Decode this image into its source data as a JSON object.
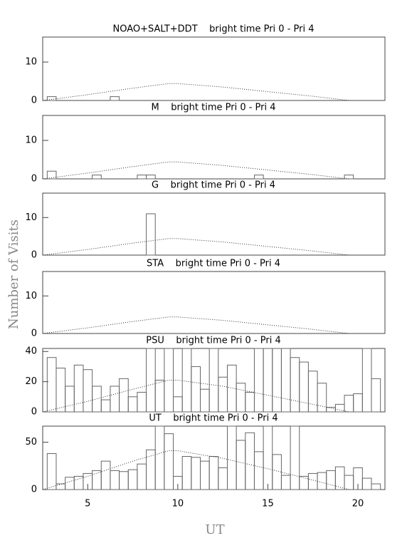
{
  "chart_data": [
    {
      "type": "histogram",
      "title": "NOAO+SALT+DDT    bright time Pri 0 - Pri 4",
      "bins": [
        2.75,
        3.25,
        3.75,
        4.25,
        4.75,
        5.25,
        5.75,
        6.25,
        6.75,
        7.25,
        7.75,
        8.25,
        8.75,
        9.25,
        9.75,
        10.25,
        10.75,
        11.25,
        11.75,
        12.25,
        12.75,
        13.25,
        13.75,
        14.25,
        14.75,
        15.25,
        15.75,
        16.25,
        16.75,
        17.25,
        17.75,
        18.25,
        18.75,
        19.25,
        19.75,
        20.25,
        20.75,
        21.25
      ],
      "values": [
        1,
        0,
        0,
        0,
        0,
        0,
        0,
        1,
        0,
        0,
        0,
        0,
        0,
        0,
        0,
        0,
        0,
        0,
        0,
        0,
        0,
        0,
        0,
        0,
        0,
        0,
        0,
        0,
        0,
        0,
        0,
        0,
        0,
        0,
        0,
        0,
        0
      ],
      "curve": {
        "x": [
          2.5,
          5,
          7.5,
          9.5,
          10,
          12.5,
          15,
          17.5,
          19.5
        ],
        "values": [
          0,
          1.5,
          3.2,
          4.4,
          4.4,
          3.5,
          2.3,
          1.1,
          0
        ]
      },
      "xlim": [
        2.5,
        21.5
      ],
      "ylim": [
        0,
        16.5
      ],
      "yticks": [
        0,
        10
      ]
    },
    {
      "type": "histogram",
      "title": "M    bright time Pri 0 - Pri 4",
      "bins": [
        2.75,
        3.25,
        3.75,
        4.25,
        4.75,
        5.25,
        5.75,
        6.25,
        6.75,
        7.25,
        7.75,
        8.25,
        8.75,
        9.25,
        9.75,
        10.25,
        10.75,
        11.25,
        11.75,
        12.25,
        12.75,
        13.25,
        13.75,
        14.25,
        14.75,
        15.25,
        15.75,
        16.25,
        16.75,
        17.25,
        17.75,
        18.25,
        18.75,
        19.25,
        19.75,
        20.25,
        20.75,
        21.25
      ],
      "values": [
        2,
        0,
        0,
        0,
        0,
        1,
        0,
        0,
        0,
        0,
        1,
        1,
        0,
        0,
        0,
        0,
        0,
        0,
        0,
        0,
        0,
        0,
        0,
        1,
        0,
        0,
        0,
        0,
        0,
        0,
        0,
        0,
        0,
        1,
        0,
        0,
        0
      ],
      "curve": {
        "x": [
          2.5,
          5,
          7.5,
          9.5,
          10,
          12.5,
          15,
          17.5,
          19.5
        ],
        "values": [
          0,
          1.5,
          3.2,
          4.4,
          4.4,
          3.5,
          2.3,
          1.1,
          0
        ]
      },
      "xlim": [
        2.5,
        21.5
      ],
      "ylim": [
        0,
        16.5
      ],
      "yticks": [
        0,
        10
      ]
    },
    {
      "type": "histogram",
      "title": "G    bright time Pri 0 - Pri 4",
      "bins": [
        2.75,
        3.25,
        3.75,
        4.25,
        4.75,
        5.25,
        5.75,
        6.25,
        6.75,
        7.25,
        7.75,
        8.25,
        8.75,
        9.25,
        9.75,
        10.25,
        10.75,
        11.25,
        11.75,
        12.25,
        12.75,
        13.25,
        13.75,
        14.25,
        14.75,
        15.25,
        15.75,
        16.25,
        16.75,
        17.25,
        17.75,
        18.25,
        18.75,
        19.25,
        19.75,
        20.25,
        20.75,
        21.25
      ],
      "values": [
        0,
        0,
        0,
        0,
        0,
        0,
        0,
        0,
        0,
        0,
        0,
        11,
        0,
        0,
        0,
        0,
        0,
        0,
        0,
        0,
        0,
        0,
        0,
        0,
        0,
        0,
        0,
        0,
        0,
        0,
        0,
        0,
        0,
        0,
        0,
        0,
        0
      ],
      "curve": {
        "x": [
          2.5,
          5,
          7.5,
          9.5,
          10,
          12.5,
          15,
          17.5,
          19.5
        ],
        "values": [
          0,
          1.5,
          3.2,
          4.4,
          4.4,
          3.5,
          2.3,
          1.1,
          0
        ]
      },
      "xlim": [
        2.5,
        21.5
      ],
      "ylim": [
        0,
        16.5
      ],
      "yticks": [
        0,
        10
      ]
    },
    {
      "type": "histogram",
      "title": "STA    bright time Pri 0 - Pri 4",
      "bins": [
        2.75,
        3.25,
        3.75,
        4.25,
        4.75,
        5.25,
        5.75,
        6.25,
        6.75,
        7.25,
        7.75,
        8.25,
        8.75,
        9.25,
        9.75,
        10.25,
        10.75,
        11.25,
        11.75,
        12.25,
        12.75,
        13.25,
        13.75,
        14.25,
        14.75,
        15.25,
        15.75,
        16.25,
        16.75,
        17.25,
        17.75,
        18.25,
        18.75,
        19.25,
        19.75,
        20.25,
        20.75,
        21.25
      ],
      "values": [
        0,
        0,
        0,
        0,
        0,
        0,
        0,
        0,
        0,
        0,
        0,
        0,
        0,
        0,
        0,
        0,
        0,
        0,
        0,
        0,
        0,
        0,
        0,
        0,
        0,
        0,
        0,
        0,
        0,
        0,
        0,
        0,
        0,
        0,
        0,
        0,
        0
      ],
      "curve": {
        "x": [
          2.5,
          5,
          7.5,
          9.5,
          10,
          12.5,
          15,
          17.5,
          19.5
        ],
        "values": [
          0,
          1.5,
          3.2,
          4.4,
          4.4,
          3.5,
          2.3,
          1.1,
          0
        ]
      },
      "xlim": [
        2.5,
        21.5
      ],
      "ylim": [
        0,
        16.5
      ],
      "yticks": [
        0,
        10
      ]
    },
    {
      "type": "histogram",
      "title": "PSU    bright time Pri 0 - Pri 4",
      "bins": [
        2.75,
        3.25,
        3.75,
        4.25,
        4.75,
        5.25,
        5.75,
        6.25,
        6.75,
        7.25,
        7.75,
        8.25,
        8.75,
        9.25,
        9.75,
        10.25,
        10.75,
        11.25,
        11.75,
        12.25,
        12.75,
        13.25,
        13.75,
        14.25,
        14.75,
        15.25,
        15.75,
        16.25,
        16.75,
        17.25,
        17.75,
        18.25,
        18.75,
        19.25,
        19.75,
        20.25,
        20.75,
        21.25
      ],
      "values": [
        36,
        29,
        17,
        31,
        28,
        17,
        8,
        17,
        22,
        10,
        13,
        42,
        21,
        42,
        10,
        42,
        30,
        15,
        42,
        23,
        31,
        19,
        13,
        42,
        42,
        42,
        42,
        36,
        33,
        27,
        19,
        3,
        5,
        11,
        12,
        42,
        22
      ],
      "curve": {
        "x": [
          2.5,
          5,
          7.5,
          9.5,
          10,
          12.5,
          15,
          17.5,
          19.5
        ],
        "values": [
          0,
          7,
          15,
          21,
          21,
          17,
          11,
          5,
          0
        ]
      },
      "xlim": [
        2.5,
        21.5
      ],
      "ylim": [
        0,
        42
      ],
      "yticks": [
        0,
        20,
        40
      ]
    },
    {
      "type": "histogram",
      "title": "UT    bright time Pri 0 - Pri 4",
      "bins": [
        2.75,
        3.25,
        3.75,
        4.25,
        4.75,
        5.25,
        5.75,
        6.25,
        6.75,
        7.25,
        7.75,
        8.25,
        8.75,
        9.25,
        9.75,
        10.25,
        10.75,
        11.25,
        11.75,
        12.25,
        12.75,
        13.25,
        13.75,
        14.25,
        14.75,
        15.25,
        15.75,
        16.25,
        16.75,
        17.25,
        17.75,
        18.25,
        18.75,
        19.25,
        19.75,
        20.25,
        20.75,
        21.25
      ],
      "values": [
        38,
        6,
        13,
        14,
        17,
        20,
        30,
        20,
        19,
        21,
        27,
        42,
        67,
        59,
        14,
        35,
        34,
        30,
        35,
        23,
        67,
        52,
        60,
        40,
        67,
        37,
        15,
        67,
        14,
        17,
        18,
        20,
        24,
        15,
        23,
        12,
        6
      ],
      "curve": {
        "x": [
          2.5,
          5,
          7.5,
          9.5,
          10,
          12.5,
          15,
          17.5,
          19.5
        ],
        "values": [
          0,
          14,
          30,
          41,
          41,
          33,
          22,
          10,
          0
        ]
      },
      "xlim": [
        2.5,
        21.5
      ],
      "ylim": [
        0,
        67
      ],
      "yticks": [
        0,
        50
      ],
      "xticks": [
        5,
        10,
        15,
        20
      ]
    }
  ],
  "ylabel": "Number of Visits",
  "xlabel": "UT"
}
